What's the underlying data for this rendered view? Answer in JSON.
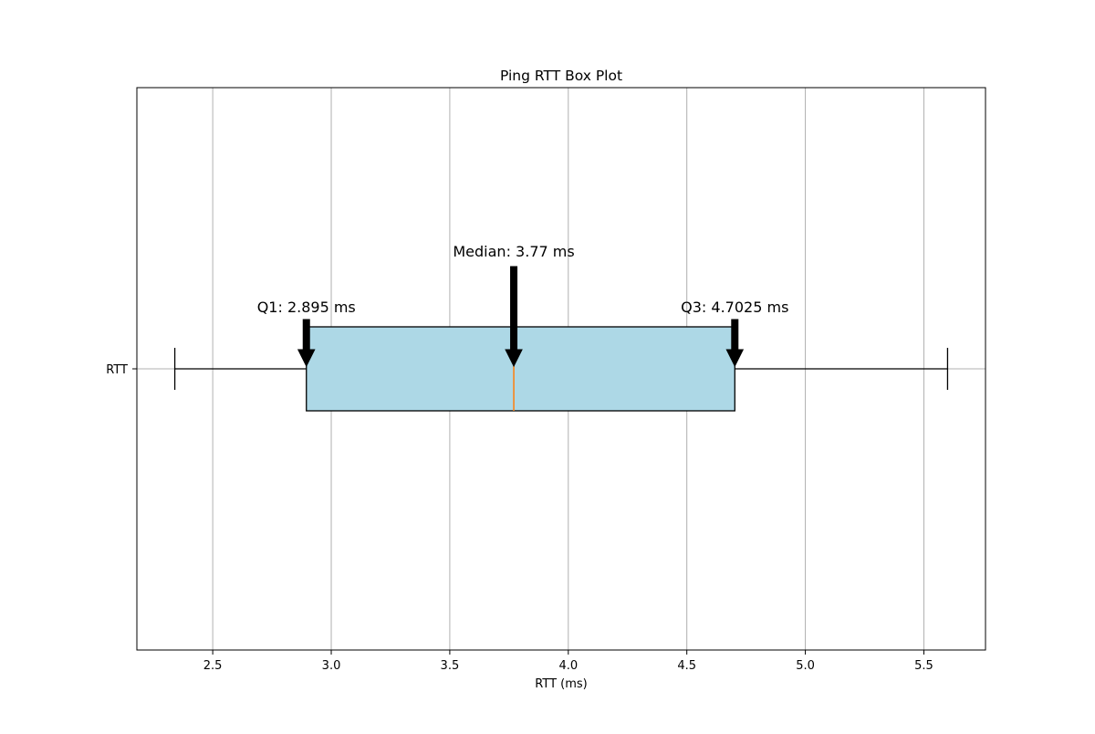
{
  "chart_data": {
    "type": "boxplot",
    "title": "Ping RTT Box Plot",
    "xlabel": "RTT (ms)",
    "ylabel": "",
    "xlim": [
      2.18,
      5.76
    ],
    "xticks": [
      2.5,
      3.0,
      3.5,
      4.0,
      4.5,
      5.0,
      5.5
    ],
    "xtick_labels": [
      "2.5",
      "3.0",
      "3.5",
      "4.0",
      "4.5",
      "5.0",
      "5.5"
    ],
    "grid": true,
    "orientation": "horizontal",
    "categories": [
      "RTT"
    ],
    "box": {
      "whisker_low": 2.34,
      "q1": 2.895,
      "median": 3.77,
      "q3": 4.7025,
      "whisker_high": 5.6
    },
    "box_color": "#add8e6",
    "median_color": "#ff7f0e",
    "annotations": [
      {
        "name": "q1",
        "text": "Q1: 2.895 ms",
        "x": 2.895
      },
      {
        "name": "median",
        "text": "Median: 3.77 ms",
        "x": 3.77
      },
      {
        "name": "q3",
        "text": "Q3: 4.7025 ms",
        "x": 4.7025
      }
    ]
  }
}
